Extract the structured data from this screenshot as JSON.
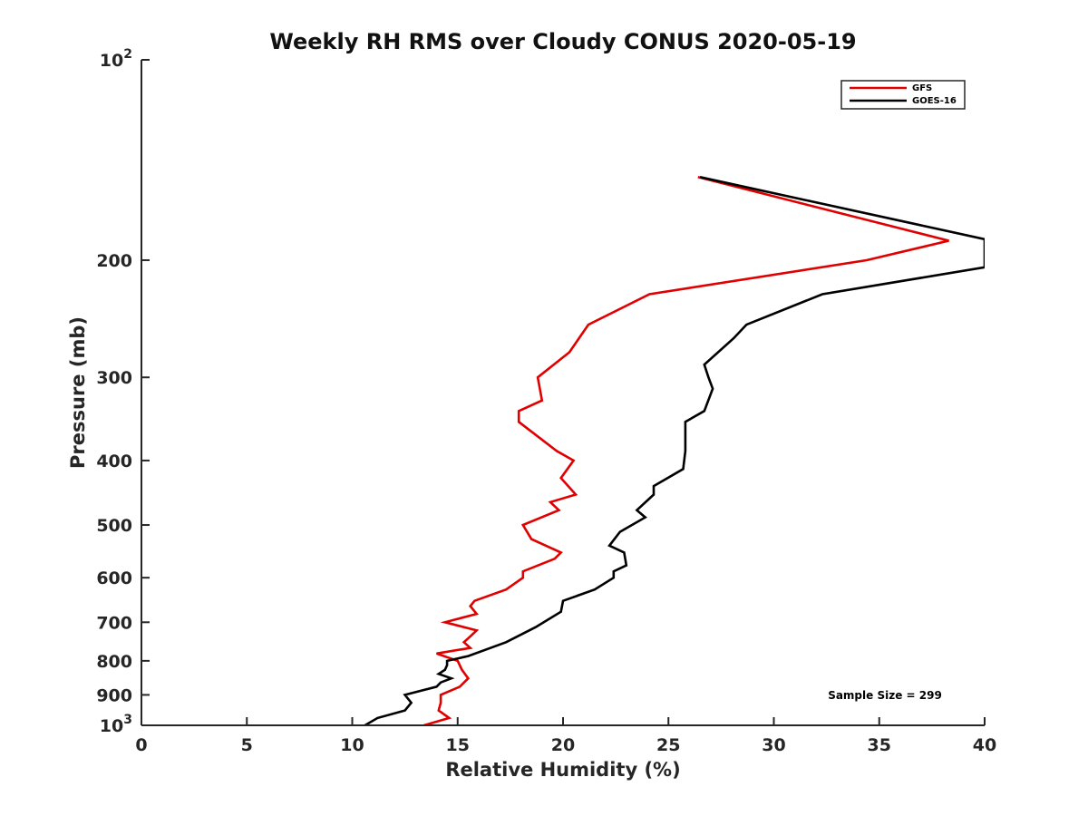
{
  "chart_data": {
    "type": "line",
    "title": "Weekly RH RMS over Cloudy CONUS 2020-05-19",
    "xlabel": "Relative Humidity (%)",
    "ylabel": "Pressure (mb)",
    "xlim": [
      0,
      40
    ],
    "ylim": [
      100,
      1000
    ],
    "yscale": "log",
    "y_inverted": true,
    "grid": false,
    "legend_position": "top-right",
    "x_ticks": [
      "0",
      "5",
      "10",
      "15",
      "20",
      "25",
      "30",
      "35",
      "40"
    ],
    "y_ticks": [
      {
        "value": 100,
        "base": "10",
        "exp": "2"
      },
      {
        "value": 200,
        "label": "200"
      },
      {
        "value": 300,
        "label": "300"
      },
      {
        "value": 400,
        "label": "400"
      },
      {
        "value": 500,
        "label": "500"
      },
      {
        "value": 600,
        "label": "600"
      },
      {
        "value": 700,
        "label": "700"
      },
      {
        "value": 800,
        "label": "800"
      },
      {
        "value": 900,
        "label": "900"
      },
      {
        "value": 1000,
        "base": "10",
        "exp": "3"
      }
    ],
    "annotation": "Sample Size = 299",
    "series": [
      {
        "name": "GFS",
        "color": "#e00000",
        "points": [
          [
            13.4,
            1000
          ],
          [
            14.6,
            975
          ],
          [
            14.1,
            950
          ],
          [
            14.2,
            925
          ],
          [
            14.2,
            900
          ],
          [
            15.1,
            875
          ],
          [
            15.5,
            850
          ],
          [
            15.2,
            825
          ],
          [
            15.0,
            800
          ],
          [
            14.0,
            780
          ],
          [
            15.6,
            765
          ],
          [
            15.3,
            750
          ],
          [
            15.6,
            735
          ],
          [
            15.9,
            720
          ],
          [
            14.4,
            700
          ],
          [
            15.9,
            680
          ],
          [
            15.6,
            662
          ],
          [
            15.8,
            650
          ],
          [
            17.3,
            625
          ],
          [
            18.1,
            600
          ],
          [
            18.1,
            587
          ],
          [
            19.6,
            562
          ],
          [
            19.9,
            550
          ],
          [
            18.5,
            525
          ],
          [
            18.1,
            500
          ],
          [
            19.8,
            475
          ],
          [
            19.4,
            462
          ],
          [
            20.6,
            450
          ],
          [
            19.9,
            425
          ],
          [
            20.5,
            400
          ],
          [
            19.7,
            387
          ],
          [
            17.9,
            350
          ],
          [
            17.9,
            337
          ],
          [
            19.0,
            325
          ],
          [
            18.8,
            300
          ],
          [
            20.3,
            275
          ],
          [
            21.2,
            250
          ],
          [
            24.1,
            225
          ],
          [
            34.4,
            200
          ],
          [
            38.3,
            187
          ],
          [
            26.4,
            150
          ]
        ]
      },
      {
        "name": "GOES-16",
        "color": "#000000",
        "points": [
          [
            10.6,
            1000
          ],
          [
            11.2,
            975
          ],
          [
            12.5,
            950
          ],
          [
            12.8,
            925
          ],
          [
            12.5,
            900
          ],
          [
            14.0,
            875
          ],
          [
            14.2,
            862
          ],
          [
            14.7,
            850
          ],
          [
            14.1,
            837
          ],
          [
            14.4,
            825
          ],
          [
            14.5,
            812
          ],
          [
            14.5,
            800
          ],
          [
            15.5,
            787
          ],
          [
            17.3,
            750
          ],
          [
            18.7,
            712
          ],
          [
            19.9,
            675
          ],
          [
            20.0,
            650
          ],
          [
            21.5,
            625
          ],
          [
            22.4,
            600
          ],
          [
            22.4,
            587
          ],
          [
            23.0,
            575
          ],
          [
            22.9,
            550
          ],
          [
            22.2,
            537
          ],
          [
            22.7,
            512
          ],
          [
            23.9,
            487
          ],
          [
            23.5,
            475
          ],
          [
            24.3,
            450
          ],
          [
            24.3,
            437
          ],
          [
            25.7,
            412
          ],
          [
            25.8,
            387
          ],
          [
            25.8,
            350
          ],
          [
            26.7,
            337
          ],
          [
            27.1,
            312
          ],
          [
            26.9,
            300
          ],
          [
            26.7,
            287
          ],
          [
            28.1,
            262
          ],
          [
            28.7,
            250
          ],
          [
            32.3,
            225
          ],
          [
            40.0,
            205
          ],
          [
            40.0,
            186
          ],
          [
            26.5,
            150
          ]
        ]
      }
    ]
  }
}
